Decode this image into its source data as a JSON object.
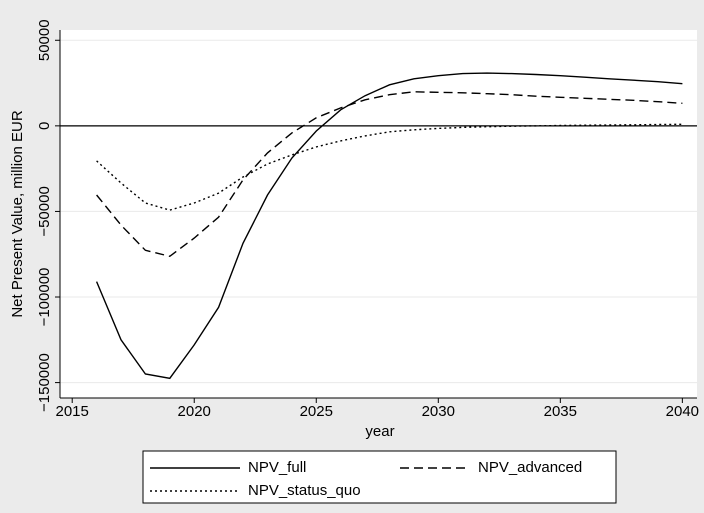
{
  "chart_data": {
    "type": "line",
    "x_label": "year",
    "y_label": "Net Present Value, million EUR",
    "x": [
      2016,
      2017,
      2018,
      2019,
      2020,
      2021,
      2022,
      2023,
      2024,
      2025,
      2026,
      2027,
      2028,
      2029,
      2030,
      2031,
      2032,
      2033,
      2034,
      2035,
      2036,
      2037,
      2038,
      2039,
      2040
    ],
    "series": [
      {
        "name": "NPV_full",
        "color": "#000000",
        "dash": "solid",
        "values": [
          -91000,
          -125000,
          -145000,
          -147500,
          -128000,
          -106000,
          -68600,
          -40400,
          -18800,
          -3000,
          9400,
          17600,
          24000,
          27500,
          29300,
          30500,
          30800,
          30500,
          30000,
          29300,
          28400,
          27500,
          26700,
          25800,
          24600
        ]
      },
      {
        "name": "NPV_advanced",
        "color": "#000000",
        "dash": "dash",
        "values": [
          -40400,
          -58000,
          -72700,
          -76200,
          -65600,
          -53300,
          -31600,
          -15800,
          -4100,
          4700,
          10500,
          15200,
          18200,
          19900,
          19600,
          19300,
          18800,
          18200,
          17300,
          16700,
          16100,
          15500,
          14900,
          14100,
          13200
        ]
      },
      {
        "name": "NPV_status_quo",
        "color": "#000000",
        "dash": "dot",
        "values": [
          -20500,
          -33400,
          -45100,
          -49200,
          -45100,
          -39300,
          -29900,
          -22300,
          -17000,
          -12300,
          -8800,
          -5900,
          -3500,
          -2300,
          -1500,
          -900,
          -500,
          -200,
          0,
          200,
          400,
          500,
          600,
          800,
          900
        ]
      }
    ],
    "xlim": [
      2014.5,
      2040.6
    ],
    "xticks": [
      2015,
      2020,
      2025,
      2030,
      2035,
      2040
    ],
    "ylim": [
      -159000,
      56000
    ],
    "yticks": [
      {
        "value": -150000,
        "label": "−150000"
      },
      {
        "value": -100000,
        "label": "−100000"
      },
      {
        "value": -50000,
        "label": "−50000"
      },
      0,
      50000
    ],
    "grid": true,
    "hline": 0,
    "legend": "bottom"
  }
}
